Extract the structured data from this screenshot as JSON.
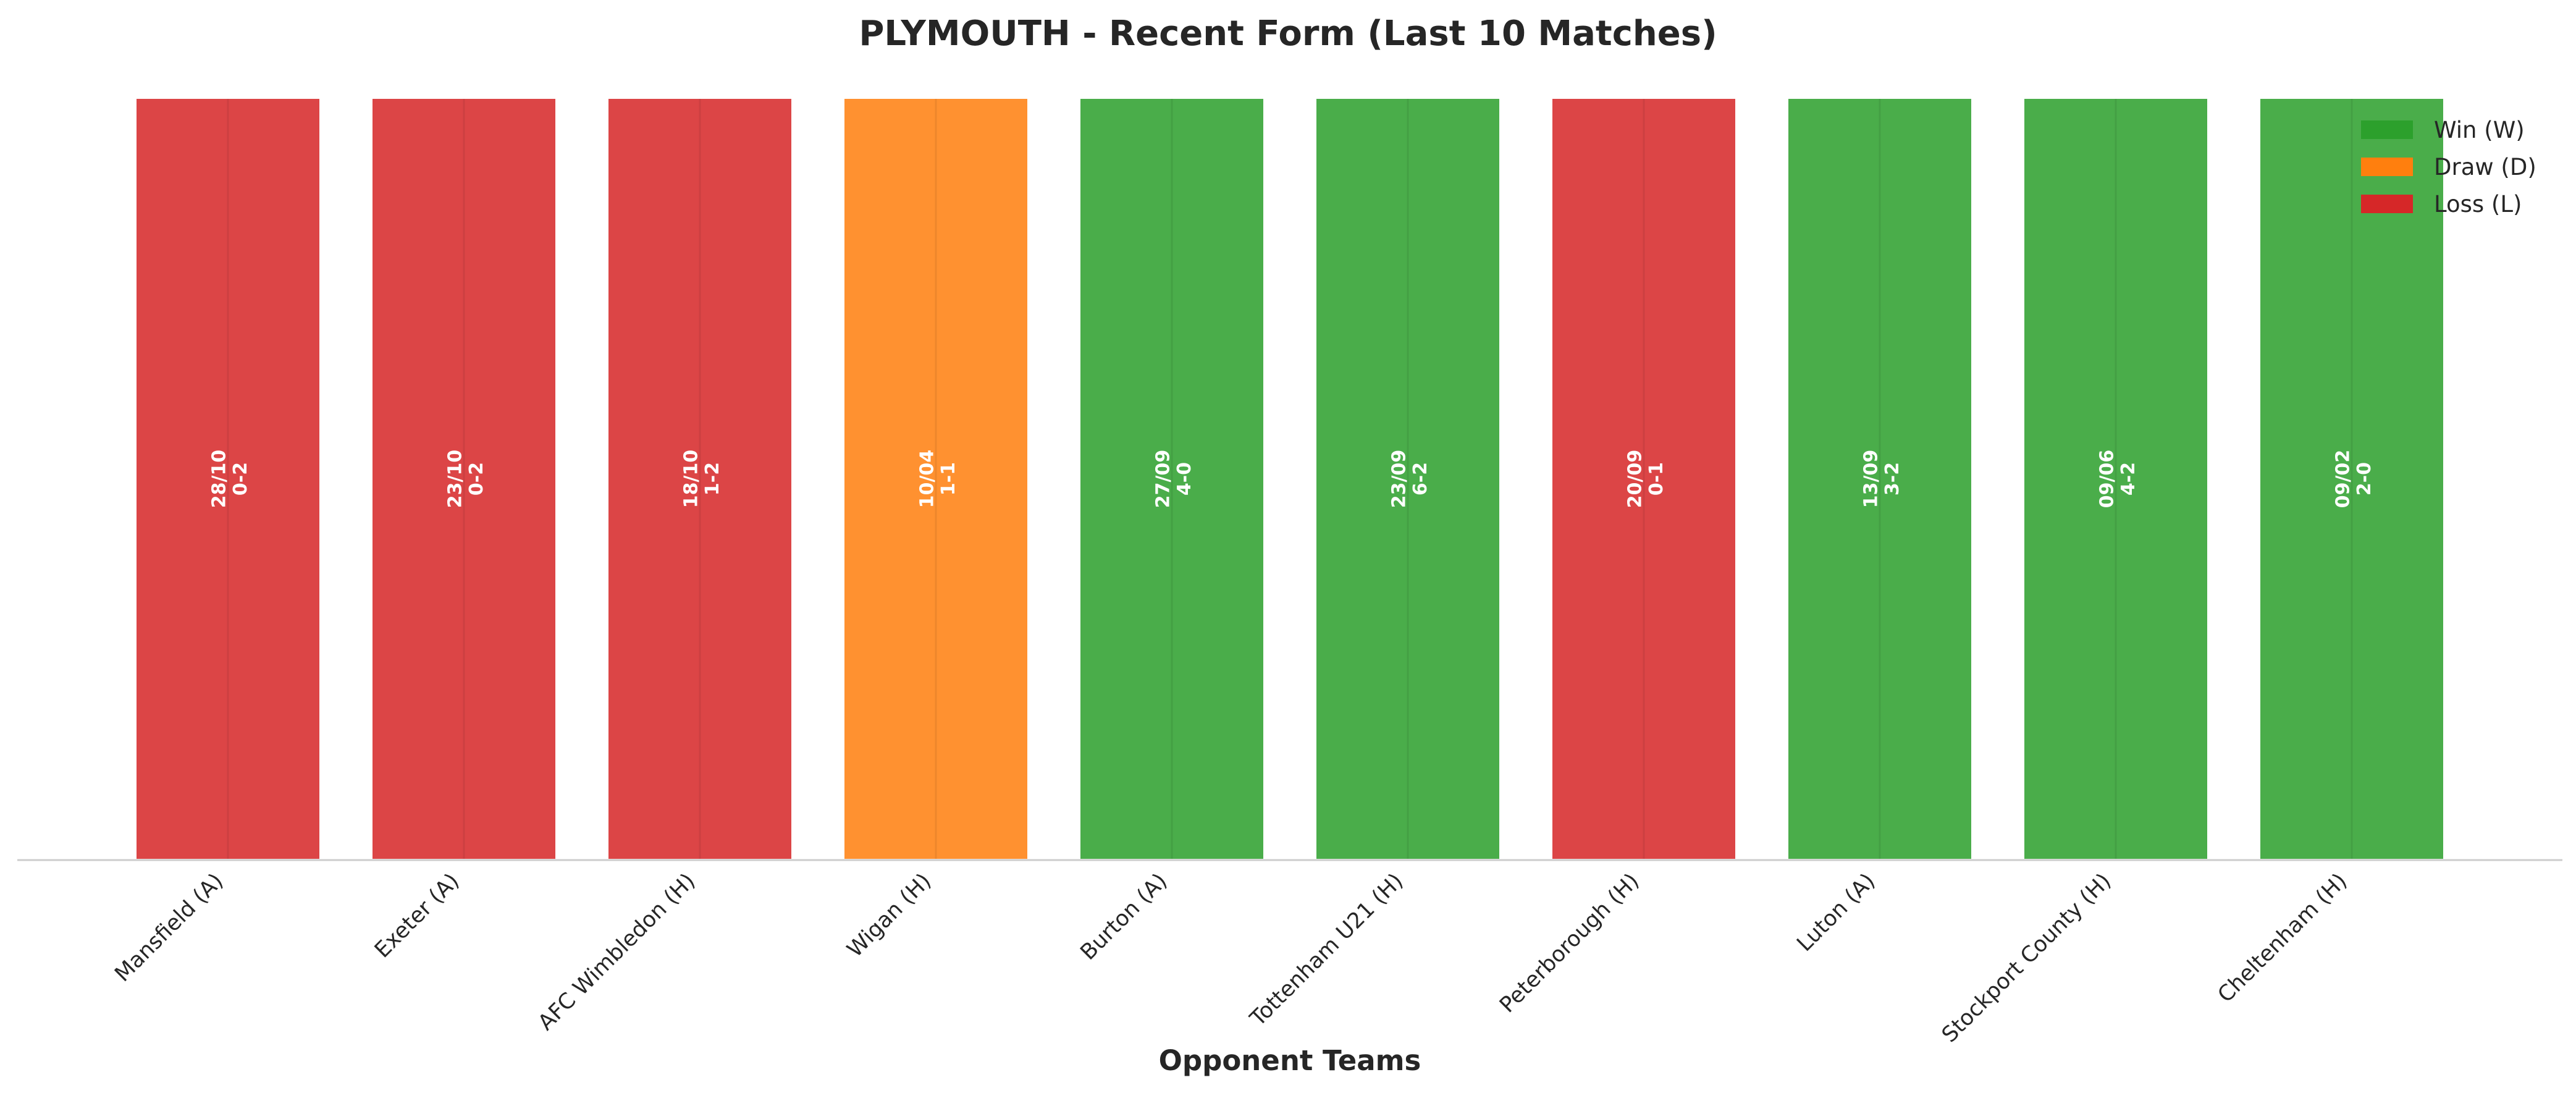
{
  "chart_data": {
    "type": "bar",
    "title": "PLYMOUTH - Recent Form (Last 10 Matches)",
    "xlabel": "Opponent Teams",
    "ylabel": "",
    "categories": [
      "Mansfield (A)",
      "Exeter (A)",
      "AFC Wimbledon (H)",
      "Wigan (H)",
      "Burton (A)",
      "Tottenham U21 (H)",
      "Peterborough (H)",
      "Luton (A)",
      "Stockport County (H)",
      "Cheltenham (H)"
    ],
    "values": [
      1,
      1,
      1,
      1,
      1,
      1,
      1,
      1,
      1,
      1
    ],
    "results": [
      "L",
      "L",
      "L",
      "D",
      "W",
      "W",
      "L",
      "W",
      "W",
      "W"
    ],
    "dates": [
      "28/10",
      "23/10",
      "18/10",
      "10/04",
      "27/09",
      "23/09",
      "20/09",
      "13/09",
      "09/06",
      "09/02"
    ],
    "scores": [
      "0-2",
      "0-2",
      "1-2",
      "1-1",
      "4-0",
      "6-2",
      "0-1",
      "3-2",
      "4-2",
      "2-0"
    ],
    "ylim": [
      0,
      1
    ],
    "grid": false,
    "legend": {
      "placement": "top-right",
      "entries": [
        {
          "key": "W",
          "label": "Win (W)",
          "color": "#2ca02c"
        },
        {
          "key": "D",
          "label": "Draw (D)",
          "color": "#ff7f0e"
        },
        {
          "key": "L",
          "label": "Loss (L)",
          "color": "#d62728"
        }
      ]
    },
    "colors": {
      "W": "#2ca02c",
      "D": "#ff7f0e",
      "L": "#d62728"
    }
  }
}
